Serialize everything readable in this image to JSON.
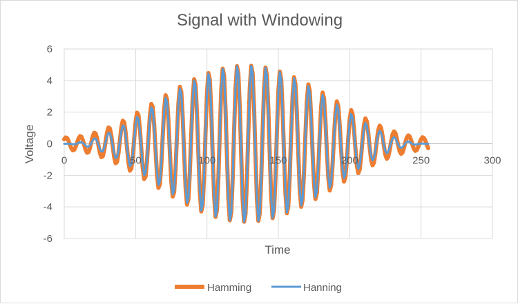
{
  "chart_data": {
    "type": "line",
    "title": "Signal with Windowing",
    "xlabel": "Time",
    "ylabel": "Voltage",
    "xlim": [
      0,
      300
    ],
    "ylim": [
      -6,
      6
    ],
    "xticks": [
      0,
      50,
      100,
      150,
      200,
      250,
      300
    ],
    "yticks": [
      -6,
      -4,
      -2,
      0,
      2,
      4,
      6
    ],
    "x_tick_labels": [
      "0",
      "50",
      "100",
      "150",
      "200",
      "250",
      "300"
    ],
    "y_tick_labels": [
      "-6",
      "-4",
      "-2",
      "0",
      "2",
      "4",
      "6"
    ],
    "grid": true,
    "legend_position": "bottom",
    "signal": {
      "samples": 256,
      "amplitude": 5,
      "period": 10,
      "phase_deg": 45
    },
    "series": [
      {
        "name": "Hamming",
        "window": "hamming",
        "color": "#ED7D31"
      },
      {
        "name": "Hanning",
        "window": "hanning",
        "color": "#5B9BD5"
      }
    ]
  }
}
